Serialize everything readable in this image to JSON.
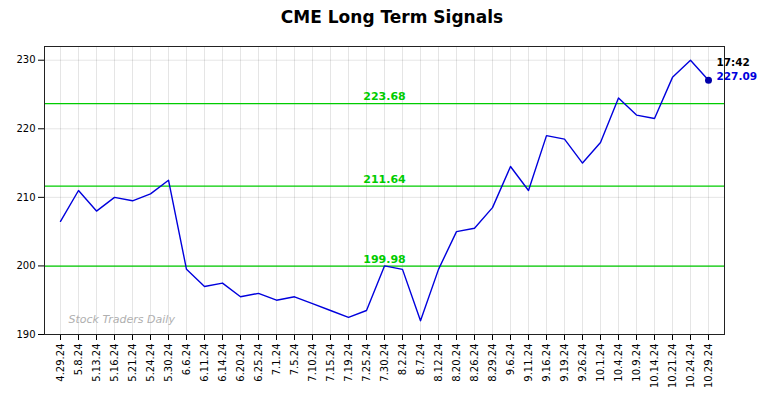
{
  "chart_data": {
    "type": "line",
    "title": "CME Long Term Signals",
    "categories": [
      "4.29.24",
      "5.8.24",
      "5.13.24",
      "5.16.24",
      "5.21.24",
      "5.24.24",
      "5.30.24",
      "6.6.24",
      "6.11.24",
      "6.14.24",
      "6.20.24",
      "6.25.24",
      "7.1.24",
      "7.5.24",
      "7.10.24",
      "7.15.24",
      "7.19.24",
      "7.25.24",
      "7.30.24",
      "8.2.24",
      "8.7.24",
      "8.12.24",
      "8.20.24",
      "8.26.24",
      "8.29.24",
      "9.6.24",
      "9.11.24",
      "9.16.24",
      "9.19.24",
      "9.26.24",
      "10.1.24",
      "10.4.24",
      "10.9.24",
      "10.14.24",
      "10.21.24",
      "10.24.24",
      "10.29.24"
    ],
    "values": [
      206.5,
      211.0,
      208.0,
      210.0,
      209.5,
      210.5,
      212.5,
      199.5,
      197.0,
      197.5,
      195.5,
      196.0,
      195.0,
      195.5,
      194.5,
      193.5,
      192.5,
      193.5,
      200.0,
      199.5,
      192.0,
      199.5,
      205.0,
      205.5,
      208.5,
      214.5,
      211.0,
      219.0,
      218.5,
      215.0,
      218.0,
      224.5,
      222.0,
      221.5,
      227.5,
      230.0,
      227.09
    ],
    "color": "#0000dd",
    "points": [
      {
        "x": "10.29.24",
        "y": 227.09,
        "color": "#0000aa"
      }
    ],
    "hlines": [
      {
        "value": 223.68,
        "label": "223.68",
        "color": "#00cc00"
      },
      {
        "value": 211.64,
        "label": "211.64",
        "color": "#00cc00"
      },
      {
        "value": 199.98,
        "label": "199.98",
        "color": "#00cc00"
      }
    ],
    "annotations": [
      {
        "text": "17:42",
        "x": "10.29.24",
        "y": 227.09,
        "color": "#000000"
      },
      {
        "text": "227.09",
        "x": "10.29.24",
        "y": 227.09,
        "color": "#0000dd"
      }
    ],
    "watermark": {
      "text": "Stock Traders Daily",
      "color": "#b0b0b0"
    },
    "ylim": [
      190,
      232
    ],
    "yticks": [
      190,
      200,
      210,
      220,
      230
    ],
    "grid": true
  }
}
